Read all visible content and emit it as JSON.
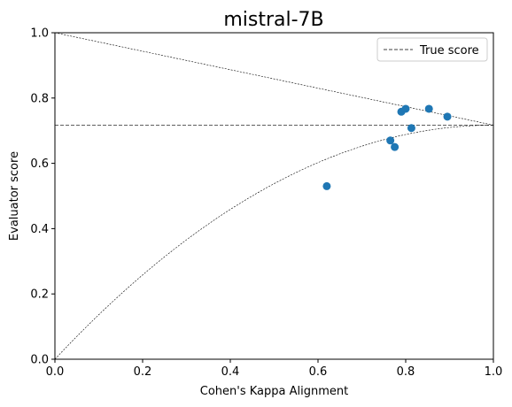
{
  "chart_data": {
    "type": "scatter",
    "title": "mistral-7B",
    "xlabel": "Cohen's Kappa Alignment",
    "ylabel": "Evaluator score",
    "xlim": [
      0.0,
      1.0
    ],
    "ylim": [
      0.0,
      1.0
    ],
    "xticks": [
      "0.0",
      "0.2",
      "0.4",
      "0.6",
      "0.8",
      "1.0"
    ],
    "yticks": [
      "0.0",
      "0.2",
      "0.4",
      "0.6",
      "0.8",
      "1.0"
    ],
    "grid": false,
    "legend": {
      "placement": "top-right",
      "entries": [
        "True score"
      ]
    },
    "true_score": 0.717,
    "points": [
      {
        "x": 0.62,
        "y": 0.53
      },
      {
        "x": 0.765,
        "y": 0.67
      },
      {
        "x": 0.775,
        "y": 0.65
      },
      {
        "x": 0.79,
        "y": 0.758
      },
      {
        "x": 0.8,
        "y": 0.767
      },
      {
        "x": 0.813,
        "y": 0.708
      },
      {
        "x": 0.853,
        "y": 0.767
      },
      {
        "x": 0.895,
        "y": 0.743
      }
    ],
    "colors": {
      "points": "#1f77b4",
      "lines": "#000000"
    }
  }
}
